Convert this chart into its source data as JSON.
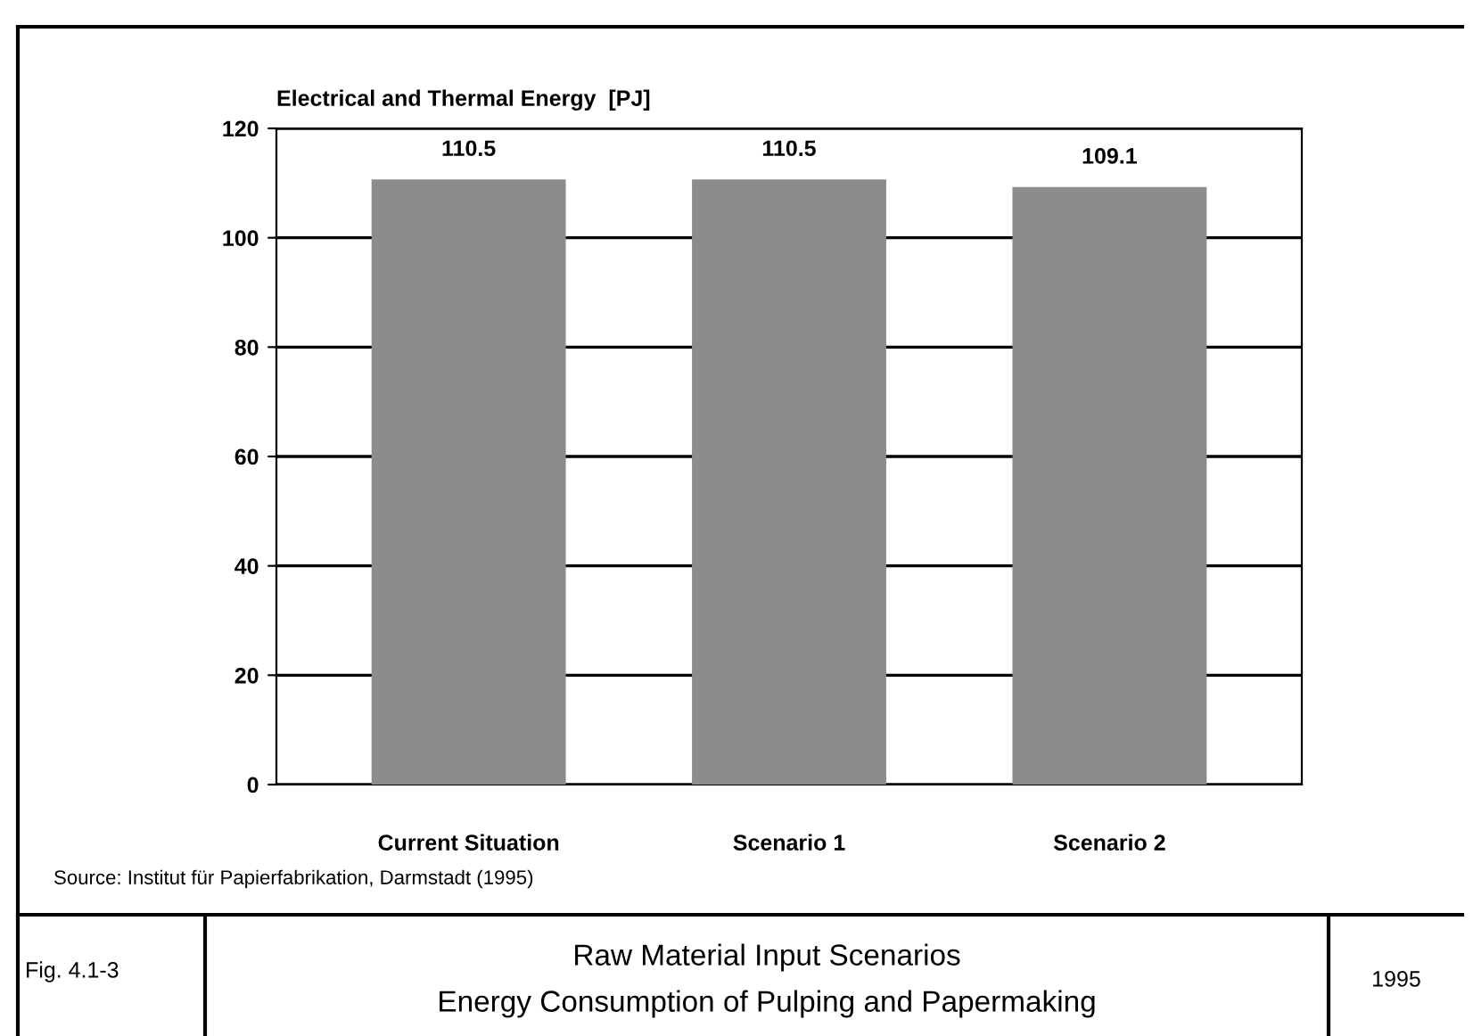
{
  "chart_data": {
    "type": "bar",
    "title": "Raw Material Input Scenarios",
    "subtitle": "Energy Consumption of Pulping and Papermaking",
    "ylabel": "Electrical and Thermal Energy  [PJ]",
    "categories": [
      "Current Situation",
      "Scenario 1",
      "Scenario 2"
    ],
    "values": [
      110.5,
      110.5,
      109.1
    ],
    "color": "#8c8c8c",
    "data_labels": true,
    "ylim": [
      0,
      120
    ],
    "yticks": [
      0,
      20,
      40,
      60,
      80,
      100,
      120
    ],
    "grid": "y",
    "annotations": [
      "Source: Institut für Papierfabrikation, Darmstadt (1995)",
      "Fig. 4.1-3",
      "1995"
    ]
  }
}
